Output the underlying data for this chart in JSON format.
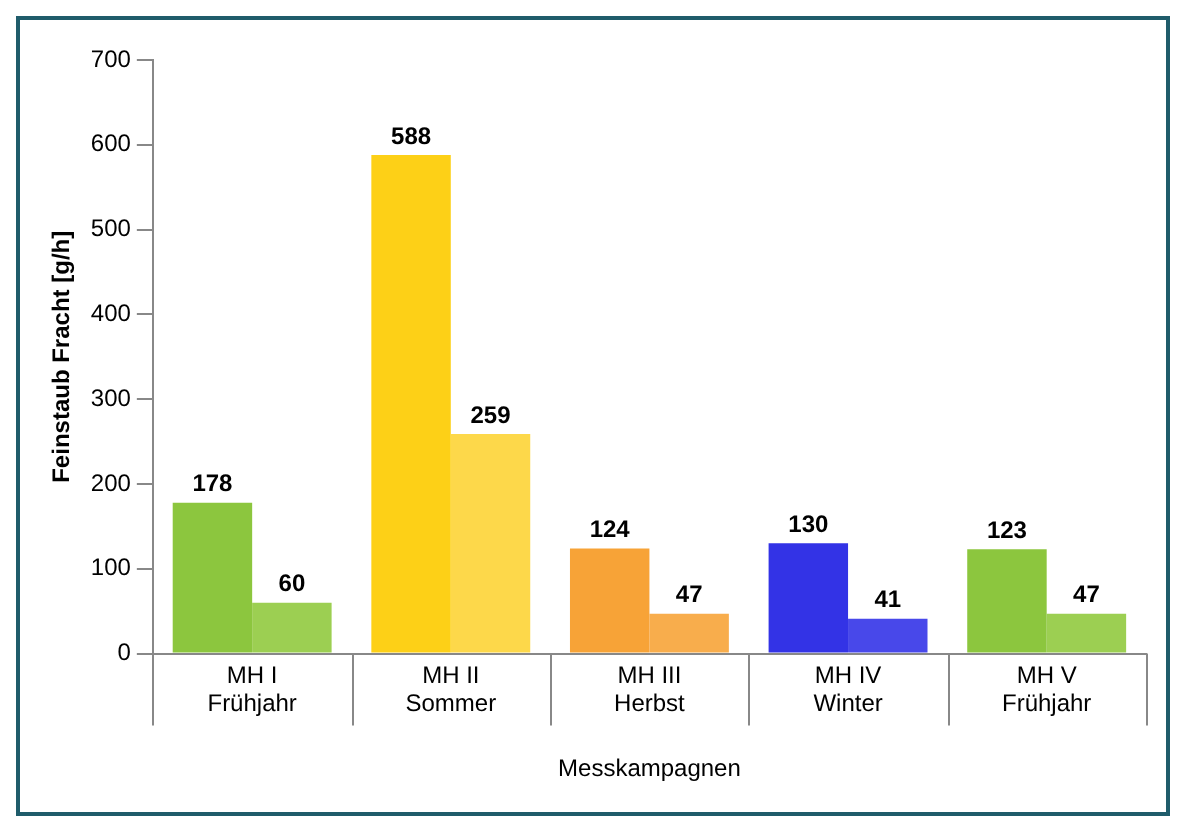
{
  "chart_data": {
    "type": "bar",
    "xlabel": "Messkampagnen",
    "ylabel": "Feinstaub Fracht [g/h]",
    "categories": [
      "MH I\nFrühjahr",
      "MH II\nSommer",
      "MH III\nHerbst",
      "MH IV\nWinter",
      "MH V\nFrühjahr"
    ],
    "series": [
      {
        "colors": [
          "#8cc63e",
          "#fdd017",
          "#f7a337",
          "#3333e6",
          "#8cc63e"
        ],
        "values": [
          178,
          588,
          124,
          130,
          123
        ]
      },
      {
        "colors": [
          "#9ccf52",
          "#fdd84a",
          "#f8ad4c",
          "#4848ea",
          "#9ccf52"
        ],
        "values": [
          60,
          259,
          47,
          41,
          47
        ]
      }
    ],
    "ylim": [
      0,
      700
    ],
    "yticks": [
      0,
      100,
      200,
      300,
      400,
      500,
      600,
      700
    ],
    "grid": false,
    "legend": false,
    "data_labels": true
  }
}
